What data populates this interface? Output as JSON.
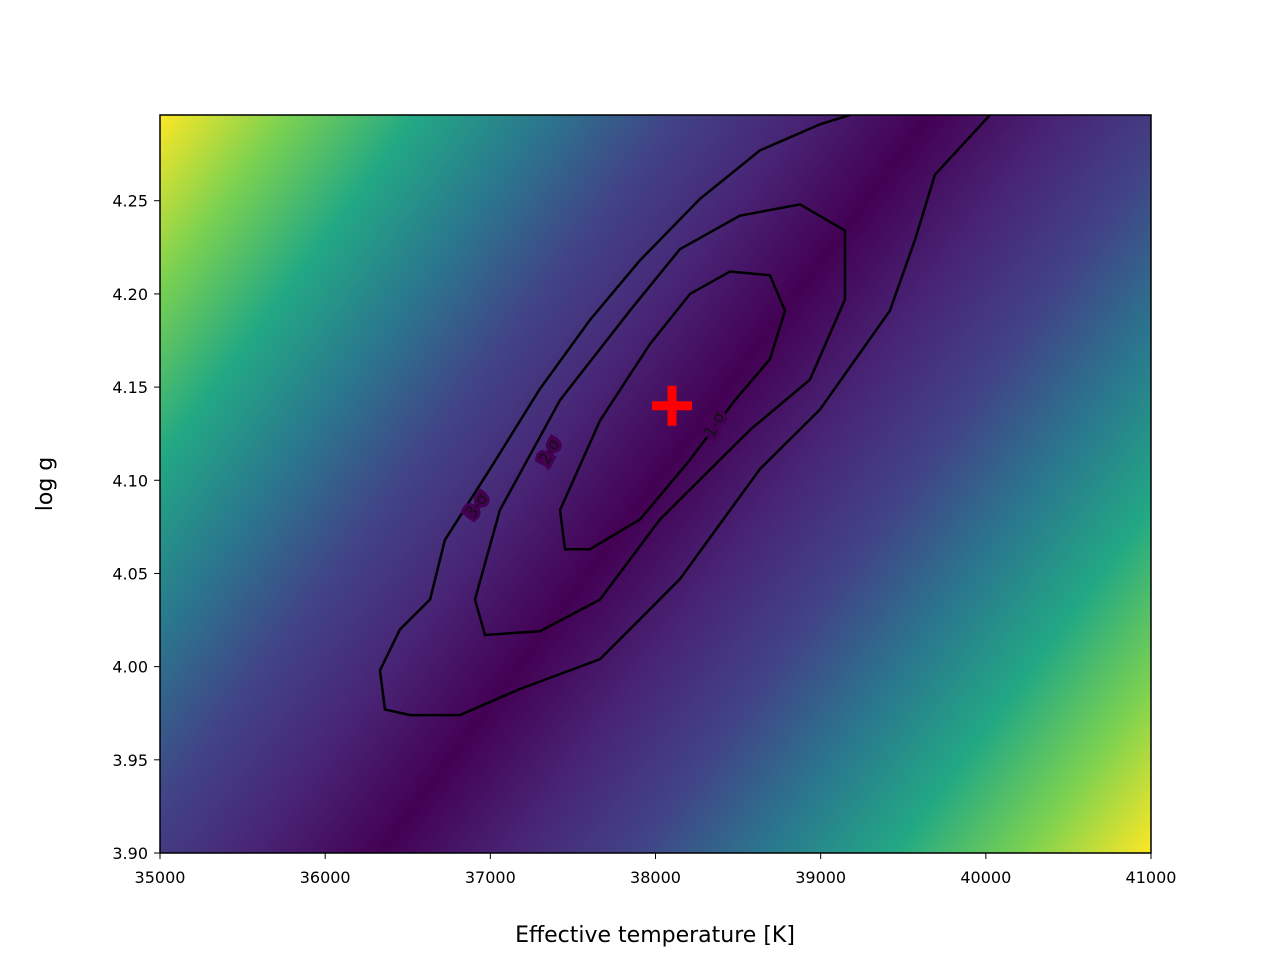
{
  "chart_data": {
    "type": "contour",
    "xlabel": "Effective temperature [K]",
    "ylabel": "log g",
    "xlim": [
      35000,
      41000
    ],
    "ylim": [
      3.9,
      4.296
    ],
    "xticks": [
      35000,
      36000,
      37000,
      38000,
      39000,
      40000,
      41000
    ],
    "yticks": [
      {
        "value": 3.9,
        "label": "3.90"
      },
      3.95,
      {
        "value": 4.0,
        "label": "4.00"
      },
      4.05,
      {
        "value": 4.1,
        "label": "4.10"
      },
      4.15,
      {
        "value": 4.2,
        "label": "4.20"
      },
      4.25
    ],
    "colormap": [
      "#fde725",
      "#7ad151",
      "#22a884",
      "#2a788e",
      "#414487",
      "#482475",
      "#440154",
      "#482475",
      "#414487",
      "#2a788e",
      "#22a884",
      "#7ad151",
      "#fde725"
    ],
    "series": [
      {
        "name": "1-σ",
        "color": "#000000",
        "x": [
          38481,
          38693,
          38784,
          38693,
          38451,
          38209,
          37966,
          37664,
          37422,
          37452,
          37603,
          37906,
          38209,
          38481
        ],
        "y": [
          4.143,
          4.165,
          4.191,
          4.21,
          4.212,
          4.2,
          4.173,
          4.132,
          4.084,
          4.063,
          4.063,
          4.079,
          4.111,
          4.143
        ]
      },
      {
        "name": "2-σ",
        "color": "#000000",
        "x": [
          38572,
          38935,
          39147,
          39147,
          38875,
          38511,
          38148,
          37845,
          37422,
          37058,
          36907,
          36968,
          37300,
          37664,
          38027,
          38390,
          38572
        ],
        "y": [
          4.127,
          4.154,
          4.197,
          4.234,
          4.248,
          4.242,
          4.224,
          4.191,
          4.143,
          4.084,
          4.036,
          4.017,
          4.019,
          4.036,
          4.079,
          4.111,
          4.127
        ]
      },
      {
        "name": "3-σ",
        "color": "#000000",
        "x": [
          39177,
          38996,
          38632,
          38269,
          37906,
          37603,
          37300,
          36998,
          36725,
          36635,
          36453,
          36332,
          36362,
          36514,
          36816,
          37179,
          37664,
          38148,
          38632,
          38996,
          39419,
          39571,
          39692,
          40025
        ],
        "y": [
          4.296,
          4.291,
          4.277,
          4.251,
          4.218,
          4.186,
          4.149,
          4.106,
          4.068,
          4.036,
          4.02,
          3.998,
          3.977,
          3.974,
          3.974,
          3.988,
          4.004,
          4.047,
          4.106,
          4.138,
          4.191,
          4.229,
          4.264,
          4.296
        ]
      }
    ],
    "best_fit": {
      "x": 38100,
      "y": 4.14,
      "color": "#ff0000"
    }
  }
}
